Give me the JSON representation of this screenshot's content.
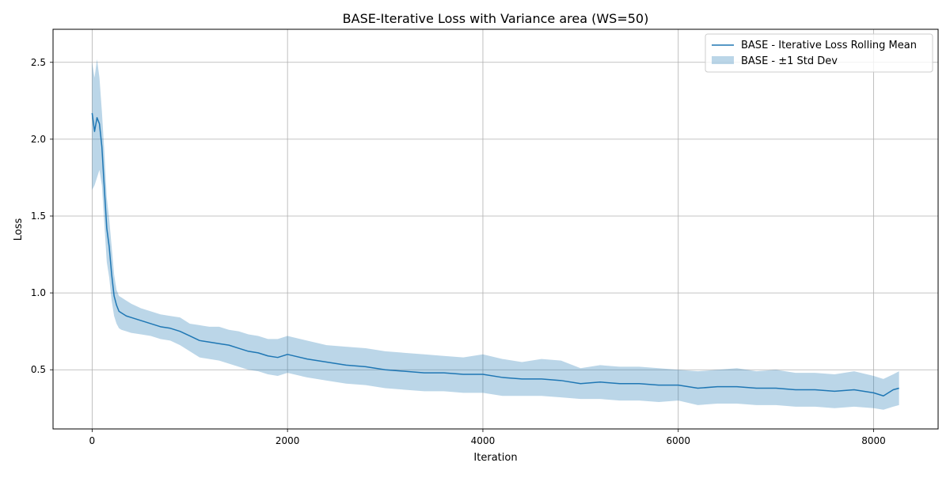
{
  "chart_data": {
    "type": "line",
    "title": "BASE-Iterative Loss with Variance area (WS=50)",
    "xlabel": "Iteration",
    "ylabel": "Loss",
    "xlim": [
      -400,
      8660
    ],
    "ylim": [
      0.115,
      2.715
    ],
    "xticks": [
      0,
      2000,
      4000,
      6000,
      8000
    ],
    "xtick_labels": [
      "0",
      "2000",
      "4000",
      "6000",
      "8000"
    ],
    "yticks": [
      0.5,
      1.0,
      1.5,
      2.0,
      2.5
    ],
    "ytick_labels": [
      "0.5",
      "1.0",
      "1.5",
      "2.0",
      "2.5"
    ],
    "grid": true,
    "legend_position": "upper right",
    "colors": {
      "line": "#1f77b4",
      "band": "#1f77b4",
      "band_opacity": 0.3,
      "grid": "#b0b0b0"
    },
    "series": [
      {
        "name": "BASE - Iterative Loss Rolling Mean",
        "kind": "line",
        "x": [
          0,
          25,
          50,
          75,
          100,
          125,
          150,
          175,
          200,
          225,
          250,
          275,
          300,
          350,
          400,
          500,
          600,
          700,
          800,
          900,
          1000,
          1100,
          1200,
          1300,
          1400,
          1500,
          1600,
          1700,
          1800,
          1900,
          2000,
          2200,
          2400,
          2600,
          2800,
          3000,
          3200,
          3400,
          3600,
          3800,
          4000,
          4200,
          4400,
          4600,
          4800,
          5000,
          5200,
          5400,
          5600,
          5800,
          6000,
          6200,
          6400,
          6600,
          6800,
          7000,
          7200,
          7400,
          7600,
          7800,
          8000,
          8100,
          8200,
          8260
        ],
        "y": [
          2.17,
          2.05,
          2.14,
          2.1,
          1.95,
          1.68,
          1.42,
          1.3,
          1.12,
          0.98,
          0.92,
          0.88,
          0.87,
          0.85,
          0.84,
          0.82,
          0.8,
          0.78,
          0.77,
          0.75,
          0.72,
          0.69,
          0.68,
          0.67,
          0.66,
          0.64,
          0.62,
          0.61,
          0.59,
          0.58,
          0.6,
          0.57,
          0.55,
          0.53,
          0.52,
          0.5,
          0.49,
          0.48,
          0.48,
          0.47,
          0.47,
          0.45,
          0.44,
          0.44,
          0.43,
          0.41,
          0.42,
          0.41,
          0.41,
          0.4,
          0.4,
          0.38,
          0.39,
          0.39,
          0.38,
          0.38,
          0.37,
          0.37,
          0.36,
          0.37,
          0.35,
          0.33,
          0.37,
          0.38
        ]
      },
      {
        "name": "BASE - ±1 Std Dev",
        "kind": "band",
        "x": [
          0,
          25,
          50,
          75,
          100,
          125,
          150,
          175,
          200,
          225,
          250,
          275,
          300,
          350,
          400,
          500,
          600,
          700,
          800,
          900,
          1000,
          1100,
          1200,
          1300,
          1400,
          1500,
          1600,
          1700,
          1800,
          1900,
          2000,
          2200,
          2400,
          2600,
          2800,
          3000,
          3200,
          3400,
          3600,
          3800,
          4000,
          4200,
          4400,
          4600,
          4800,
          5000,
          5200,
          5400,
          5600,
          5800,
          6000,
          6200,
          6400,
          6600,
          6800,
          7000,
          7200,
          7400,
          7600,
          7800,
          8000,
          8100,
          8200,
          8260
        ],
        "lower": [
          1.67,
          1.7,
          1.75,
          1.8,
          1.7,
          1.45,
          1.2,
          1.1,
          0.95,
          0.85,
          0.8,
          0.77,
          0.76,
          0.75,
          0.74,
          0.73,
          0.72,
          0.7,
          0.69,
          0.66,
          0.62,
          0.58,
          0.57,
          0.56,
          0.54,
          0.52,
          0.5,
          0.49,
          0.47,
          0.46,
          0.48,
          0.45,
          0.43,
          0.41,
          0.4,
          0.38,
          0.37,
          0.36,
          0.36,
          0.35,
          0.35,
          0.33,
          0.33,
          0.33,
          0.32,
          0.31,
          0.31,
          0.3,
          0.3,
          0.29,
          0.3,
          0.27,
          0.28,
          0.28,
          0.27,
          0.27,
          0.26,
          0.26,
          0.25,
          0.26,
          0.25,
          0.24,
          0.26,
          0.27
        ],
        "upper": [
          2.5,
          2.4,
          2.52,
          2.4,
          2.18,
          1.92,
          1.62,
          1.48,
          1.3,
          1.12,
          1.02,
          0.98,
          0.97,
          0.95,
          0.93,
          0.9,
          0.88,
          0.86,
          0.85,
          0.84,
          0.8,
          0.79,
          0.78,
          0.78,
          0.76,
          0.75,
          0.73,
          0.72,
          0.7,
          0.7,
          0.72,
          0.69,
          0.66,
          0.65,
          0.64,
          0.62,
          0.61,
          0.6,
          0.59,
          0.58,
          0.6,
          0.57,
          0.55,
          0.57,
          0.56,
          0.51,
          0.53,
          0.52,
          0.52,
          0.51,
          0.5,
          0.49,
          0.5,
          0.51,
          0.49,
          0.5,
          0.48,
          0.48,
          0.47,
          0.49,
          0.46,
          0.44,
          0.47,
          0.49
        ]
      }
    ]
  }
}
